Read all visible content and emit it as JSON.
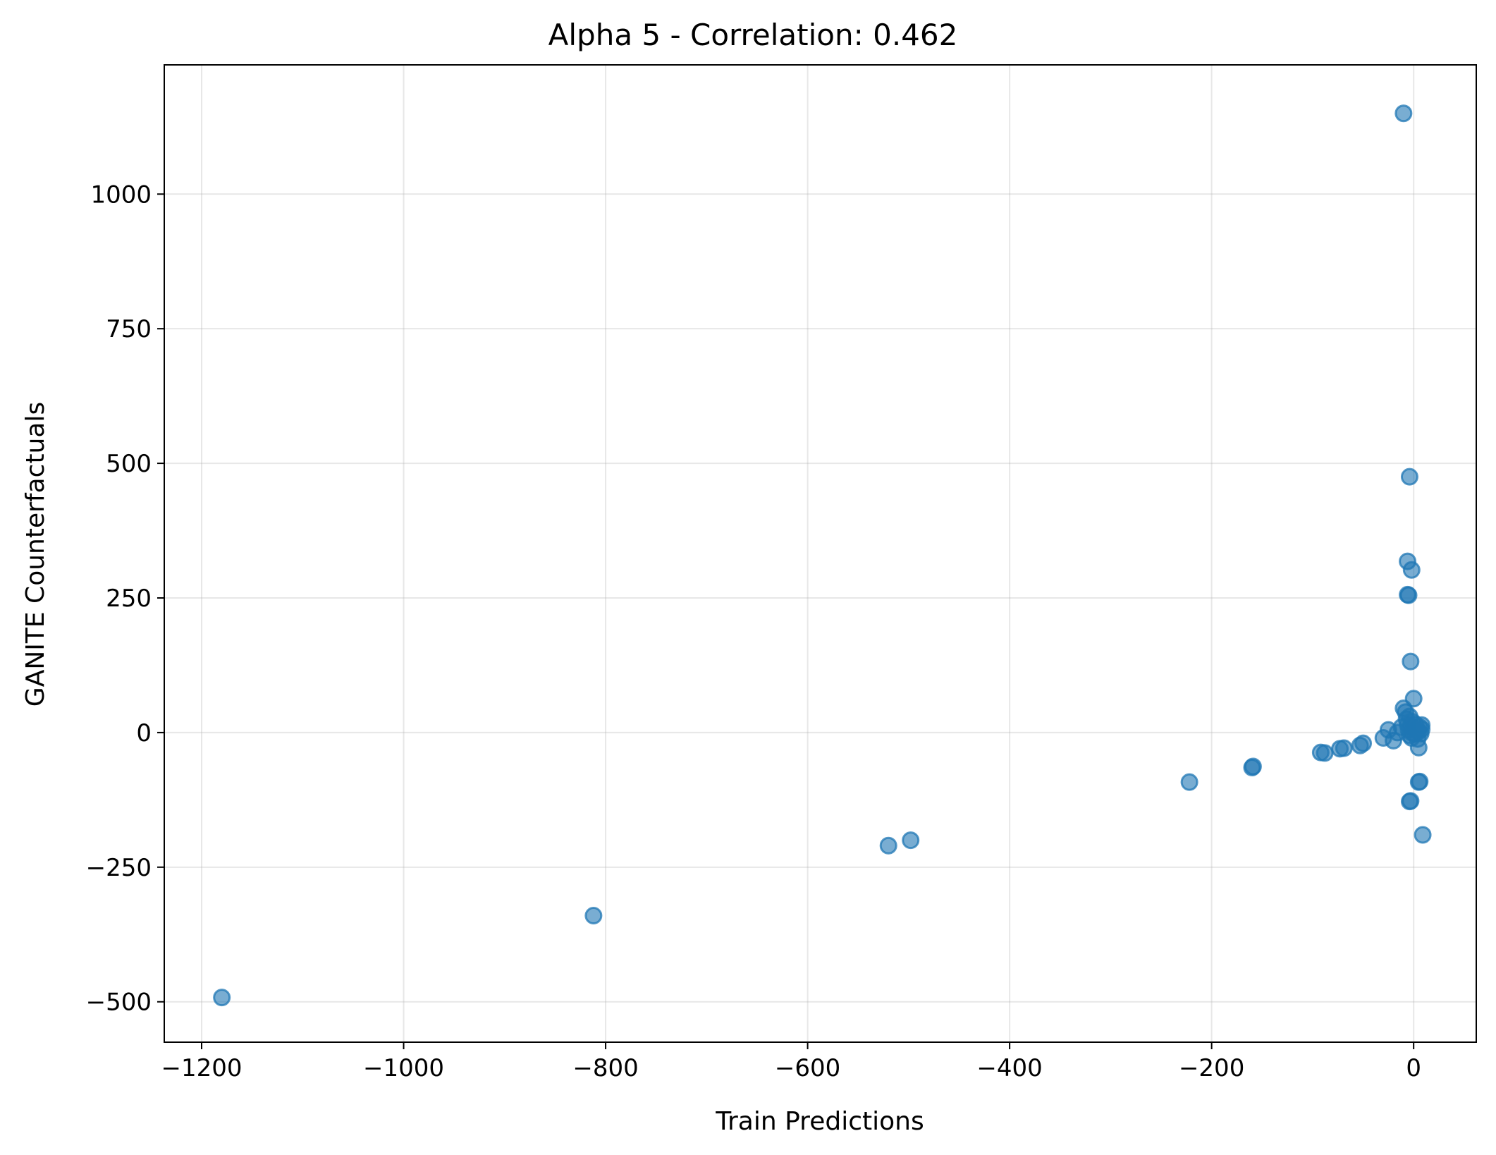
{
  "chart_data": {
    "type": "scatter",
    "title": "Alpha 5 - Correlation: 0.462",
    "xlabel": "Train Predictions",
    "ylabel": "GANITE Counterfactuals",
    "xlim": [
      -1237,
      62
    ],
    "ylim": [
      -575,
      1240
    ],
    "xticks": [
      -1200,
      -1000,
      -800,
      -600,
      -400,
      -200,
      0
    ],
    "xtick_labels": [
      "−1200",
      "−1000",
      "−800",
      "−600",
      "−400",
      "−200",
      "0"
    ],
    "yticks": [
      -500,
      -250,
      0,
      250,
      500,
      750,
      1000
    ],
    "ytick_labels": [
      "−500",
      "−250",
      "0",
      "250",
      "500",
      "750",
      "1000"
    ],
    "grid": true,
    "legend": "none",
    "marker_color": "#1f77b4",
    "marker_alpha": 0.6,
    "points": [
      {
        "x": -1180,
        "y": -492
      },
      {
        "x": -812,
        "y": -340
      },
      {
        "x": -520,
        "y": -210
      },
      {
        "x": -498,
        "y": -200
      },
      {
        "x": -222,
        "y": -92
      },
      {
        "x": -160,
        "y": -65
      },
      {
        "x": -159,
        "y": -63
      },
      {
        "x": -92,
        "y": -37
      },
      {
        "x": -88,
        "y": -38
      },
      {
        "x": -73,
        "y": -30
      },
      {
        "x": -69,
        "y": -29
      },
      {
        "x": -53,
        "y": -24
      },
      {
        "x": -50,
        "y": -20
      },
      {
        "x": -30,
        "y": -10
      },
      {
        "x": -25,
        "y": 5
      },
      {
        "x": -20,
        "y": -15
      },
      {
        "x": -16,
        "y": 0
      },
      {
        "x": -12,
        "y": 10
      },
      {
        "x": -10,
        "y": 45
      },
      {
        "x": -8,
        "y": 38
      },
      {
        "x": -7,
        "y": 25
      },
      {
        "x": -6,
        "y": 15
      },
      {
        "x": -5,
        "y": 5
      },
      {
        "x": -4,
        "y": -5
      },
      {
        "x": -4,
        "y": 30
      },
      {
        "x": -3,
        "y": 12
      },
      {
        "x": -2,
        "y": 0
      },
      {
        "x": -2,
        "y": -10
      },
      {
        "x": -1,
        "y": 20
      },
      {
        "x": 0,
        "y": 8
      },
      {
        "x": 1,
        "y": -3
      },
      {
        "x": 2,
        "y": 15
      },
      {
        "x": 3,
        "y": 5
      },
      {
        "x": 4,
        "y": -12
      },
      {
        "x": 5,
        "y": 2
      },
      {
        "x": 6,
        "y": 10
      },
      {
        "x": 7,
        "y": -2
      },
      {
        "x": 8,
        "y": 6
      },
      {
        "x": 8,
        "y": 14
      },
      {
        "x": 5,
        "y": -28
      },
      {
        "x": 0,
        "y": 63
      },
      {
        "x": -3,
        "y": 132
      },
      {
        "x": -5,
        "y": 255
      },
      {
        "x": -6,
        "y": 256
      },
      {
        "x": -2,
        "y": 302
      },
      {
        "x": -6,
        "y": 318
      },
      {
        "x": -4,
        "y": 475
      },
      {
        "x": -10,
        "y": 1150
      },
      {
        "x": -4,
        "y": -128
      },
      {
        "x": -3,
        "y": -127
      },
      {
        "x": 5,
        "y": -92
      },
      {
        "x": 6,
        "y": -91
      },
      {
        "x": 9,
        "y": -190
      }
    ]
  }
}
